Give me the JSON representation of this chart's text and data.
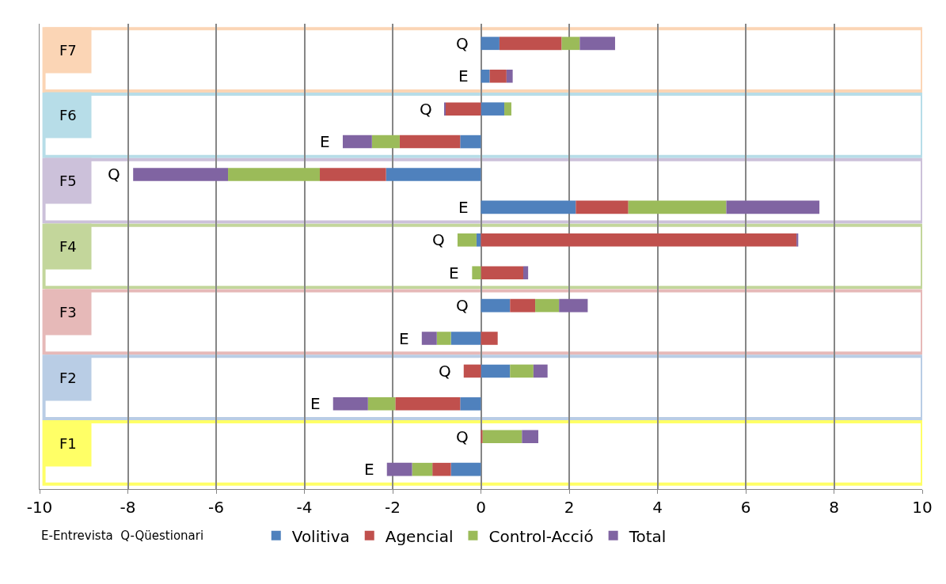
{
  "chart_data": {
    "type": "bar",
    "orientation": "horizontal",
    "stacked": true,
    "categories": [
      "Q",
      "E",
      "Q",
      "E",
      "Q",
      "E",
      "Q",
      "E",
      "Q",
      "E",
      "Q",
      "E",
      "Q",
      "E"
    ],
    "series": [
      {
        "name": "Volitiva",
        "color": "#4f81bd",
        "values": [
          0.42,
          0.2,
          0.53,
          -0.47,
          -2.15,
          2.15,
          -0.1,
          0,
          0.66,
          -0.68,
          0.66,
          -0.47,
          0,
          -0.68
        ]
      },
      {
        "name": "Agencial",
        "color": "#c0504d",
        "values": [
          1.41,
          0.38,
          -0.8,
          -1.37,
          -1.5,
          1.19,
          7.15,
          0.96,
          0.57,
          0.38,
          -0.39,
          -1.47,
          0.04,
          -0.42
        ]
      },
      {
        "name": "Control-Acció",
        "color": "#9bbb59",
        "values": [
          0.41,
          0,
          0.16,
          -0.63,
          -2.08,
          2.22,
          -0.43,
          -0.2,
          0.54,
          -0.32,
          0.53,
          -0.62,
          0.89,
          -0.46
        ]
      },
      {
        "name": "Total",
        "color": "#8064a2",
        "values": [
          0.8,
          0.14,
          -0.02,
          -0.66,
          -2.15,
          2.11,
          0.04,
          0.11,
          0.65,
          -0.34,
          0.32,
          -0.79,
          0.37,
          -0.57
        ]
      }
    ],
    "xlim": [
      -10,
      10
    ],
    "xticks": [
      -10,
      -8,
      -6,
      -4,
      -2,
      0,
      2,
      4,
      6,
      8,
      10
    ],
    "grid": "x",
    "legend": "bottom",
    "tick_labels": "x",
    "annotations": [
      "F7",
      "F6",
      "F5",
      "F4",
      "F3",
      "F2",
      "F1",
      "E-Entrevista  Q-Qüestionari"
    ]
  }
}
